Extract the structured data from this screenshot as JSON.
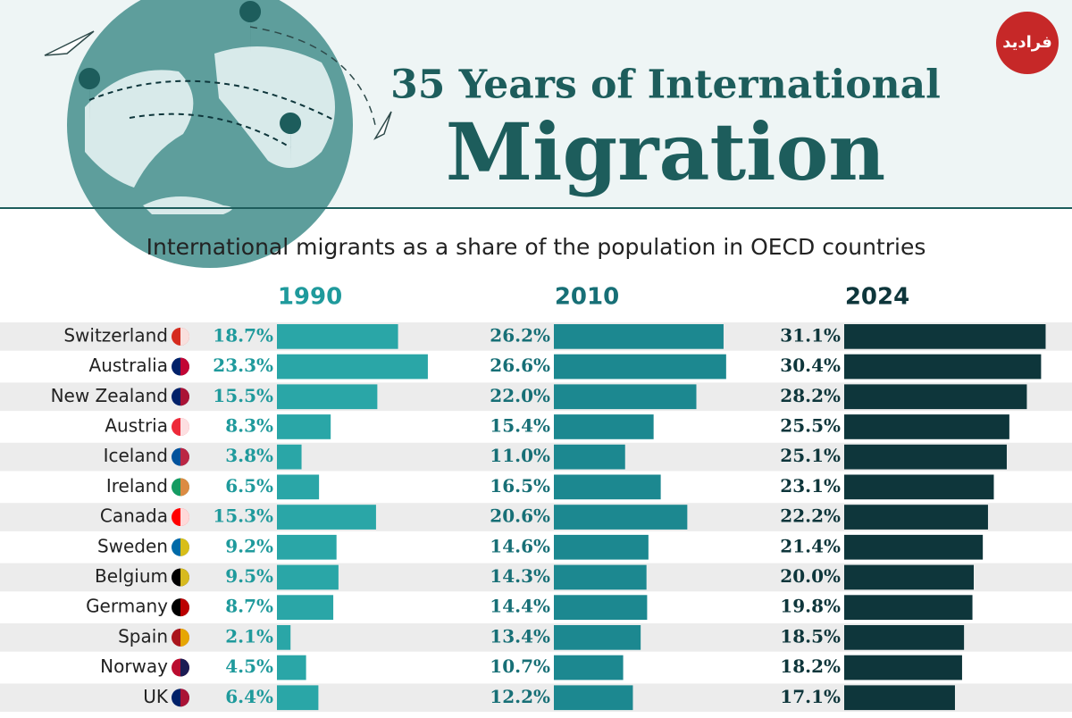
{
  "watermark": "فرادید",
  "chart_data": {
    "type": "bar",
    "title": "35 Years of International",
    "title_main": "Migration",
    "subtitle": "International migrants as a share of the population in OECD countries",
    "categories": [
      "Switzerland",
      "Australia",
      "New Zealand",
      "Austria",
      "Iceland",
      "Ireland",
      "Canada",
      "Sweden",
      "Belgium",
      "Germany",
      "Spain",
      "Norway",
      "UK"
    ],
    "series": [
      {
        "name": "1990",
        "color": "#2aa6a7",
        "label_color": "#1f9a9c",
        "values": [
          18.7,
          23.3,
          15.5,
          8.3,
          3.8,
          6.5,
          15.3,
          9.2,
          9.5,
          8.7,
          2.1,
          4.5,
          6.4
        ],
        "value_labels": [
          "18.7%",
          "23.3%",
          "15.5%",
          "8.3%",
          "3.8%",
          "6.5%",
          "15.3%",
          "9.2%",
          "9.5%",
          "8.7%",
          "2.1%",
          "4.5%",
          "6.4%"
        ]
      },
      {
        "name": "2010",
        "color": "#1c8890",
        "label_color": "#176f76",
        "values": [
          26.2,
          26.6,
          22.0,
          15.4,
          11.0,
          16.5,
          20.6,
          14.6,
          14.3,
          14.4,
          13.4,
          10.7,
          12.2
        ],
        "value_labels": [
          "26.2%",
          "26.6%",
          "22.0%",
          "15.4%",
          "11.0%",
          "16.5%",
          "20.6%",
          "14.6%",
          "14.3%",
          "14.4%",
          "13.4%",
          "10.7%",
          "12.2%"
        ]
      },
      {
        "name": "2024",
        "color": "#0e363b",
        "label_color": "#0e363b",
        "values": [
          31.1,
          30.4,
          28.2,
          25.5,
          25.1,
          23.1,
          22.2,
          21.4,
          20.0,
          19.8,
          18.5,
          18.2,
          17.1
        ],
        "value_labels": [
          "31.1%",
          "30.4%",
          "28.2%",
          "25.5%",
          "25.1%",
          "23.1%",
          "22.2%",
          "21.4%",
          "20.0%",
          "19.8%",
          "18.5%",
          "18.2%",
          "17.1%"
        ]
      }
    ]
  }
}
